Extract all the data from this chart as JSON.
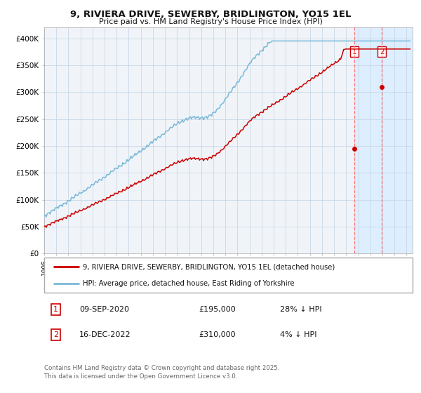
{
  "title": "9, RIVIERA DRIVE, SEWERBY, BRIDLINGTON, YO15 1EL",
  "subtitle": "Price paid vs. HM Land Registry's House Price Index (HPI)",
  "hpi_label": "HPI: Average price, detached house, East Riding of Yorkshire",
  "property_label": "9, RIVIERA DRIVE, SEWERBY, BRIDLINGTON, YO15 1EL (detached house)",
  "hpi_color": "#7ab8d9",
  "property_color": "#cc0000",
  "background_color": "#ffffff",
  "plot_bg_color": "#f0f4f8",
  "shaded_region_color": "#ddeeff",
  "dashed_line_color": "#ff7777",
  "grid_color": "#c8d8e8",
  "annotation1": {
    "label": "1",
    "date": "09-SEP-2020",
    "price": "£195,000",
    "hpi": "28% ↓ HPI"
  },
  "annotation2": {
    "label": "2",
    "date": "16-DEC-2022",
    "price": "£310,000",
    "hpi": "4% ↓ HPI"
  },
  "footer": "Contains HM Land Registry data © Crown copyright and database right 2025.\nThis data is licensed under the Open Government Licence v3.0.",
  "ylim": [
    0,
    420000
  ],
  "yticks": [
    0,
    50000,
    100000,
    150000,
    200000,
    250000,
    300000,
    350000,
    400000
  ],
  "ytick_labels": [
    "£0",
    "£50K",
    "£100K",
    "£150K",
    "£200K",
    "£250K",
    "£300K",
    "£350K",
    "£400K"
  ],
  "year_start": 1995,
  "year_end": 2025,
  "sale1_year": 2020.69,
  "sale1_price": 195000,
  "sale2_year": 2022.96,
  "sale2_price": 310000
}
